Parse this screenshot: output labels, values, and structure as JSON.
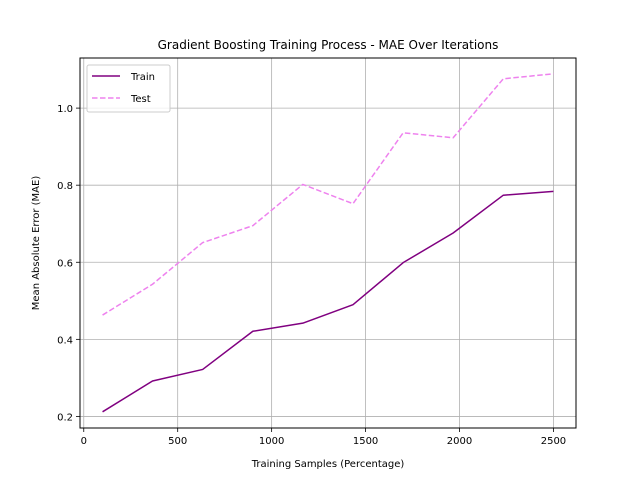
{
  "chart_data": {
    "type": "line",
    "title": "Gradient Boosting Training Process - MAE Over Iterations",
    "xlabel": "Training Samples (Percentage)",
    "ylabel": "Mean Absolute Error (MAE)",
    "xlim": [
      -20,
      2620
    ],
    "ylim": [
      0.17,
      1.13
    ],
    "xticks": [
      0,
      500,
      1000,
      1500,
      2000,
      2500
    ],
    "yticks": [
      0.2,
      0.4,
      0.6,
      0.8,
      1.0
    ],
    "x": [
      100,
      366,
      633,
      900,
      1166,
      1433,
      1700,
      1966,
      2233,
      2500
    ],
    "grid": true,
    "legend_position": "top-left",
    "series": [
      {
        "name": "Train",
        "color": "#800080",
        "style": "solid",
        "values": [
          0.212,
          0.292,
          0.322,
          0.421,
          0.442,
          0.49,
          0.599,
          0.676,
          0.774,
          0.784
        ]
      },
      {
        "name": "Test",
        "color": "#ee82ee",
        "style": "dashed",
        "values": [
          0.463,
          0.543,
          0.651,
          0.695,
          0.802,
          0.752,
          0.936,
          0.923,
          1.076,
          1.089
        ]
      }
    ]
  }
}
